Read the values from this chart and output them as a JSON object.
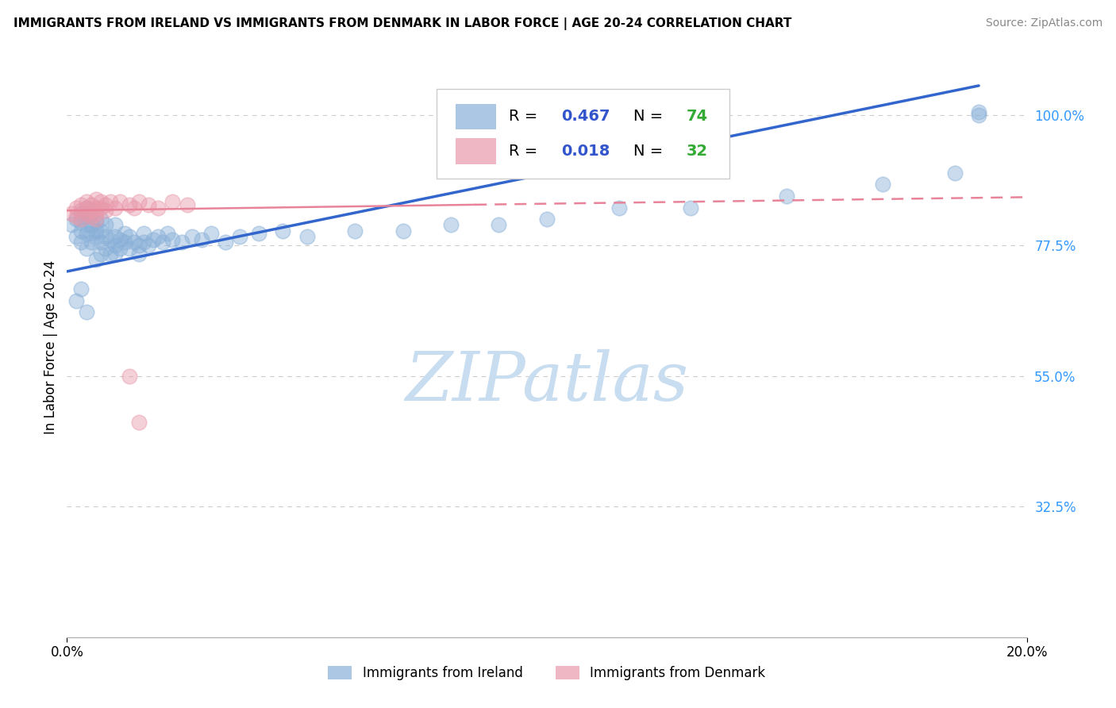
{
  "title": "IMMIGRANTS FROM IRELAND VS IMMIGRANTS FROM DENMARK IN LABOR FORCE | AGE 20-24 CORRELATION CHART",
  "source": "Source: ZipAtlas.com",
  "ylabel": "In Labor Force | Age 20-24",
  "xlim": [
    0.0,
    0.2
  ],
  "ylim": [
    0.1,
    1.1
  ],
  "xtick_labels": [
    "0.0%",
    "20.0%"
  ],
  "ytick_labels": [
    "100.0%",
    "77.5%",
    "55.0%",
    "32.5%"
  ],
  "ytick_positions": [
    1.0,
    0.775,
    0.55,
    0.325
  ],
  "grid_color": "#cccccc",
  "background_color": "#ffffff",
  "ireland_color": "#89b0d8",
  "denmark_color": "#e899aa",
  "ireland_line_color": "#3366cc",
  "denmark_line_color": "#e8849a",
  "ytick_color": "#3399ff",
  "legend_R_color": "#3355cc",
  "legend_N_color": "#33aa33",
  "watermark_text": "ZIPatlas",
  "watermark_color": "#c8ddf0",
  "ireland_R": 0.467,
  "ireland_N": 74,
  "denmark_R": 0.018,
  "denmark_N": 32,
  "ireland_line_x0": 0.0,
  "ireland_line_y0": 0.73,
  "ireland_line_x1": 0.19,
  "ireland_line_y1": 1.05,
  "denmark_line_solid_x0": 0.0,
  "denmark_line_solid_y0": 0.835,
  "denmark_line_solid_x1": 0.085,
  "denmark_line_solid_y1": 0.845,
  "denmark_line_dash_x0": 0.085,
  "denmark_line_dash_y0": 0.845,
  "denmark_line_dash_x1": 0.2,
  "denmark_line_dash_y1": 0.858,
  "ireland_x": [
    0.001,
    0.002,
    0.002,
    0.003,
    0.003,
    0.003,
    0.003,
    0.004,
    0.004,
    0.004,
    0.004,
    0.004,
    0.005,
    0.005,
    0.005,
    0.005,
    0.006,
    0.006,
    0.006,
    0.006,
    0.007,
    0.007,
    0.007,
    0.007,
    0.008,
    0.008,
    0.008,
    0.009,
    0.009,
    0.01,
    0.01,
    0.01,
    0.01,
    0.011,
    0.011,
    0.012,
    0.012,
    0.013,
    0.013,
    0.014,
    0.015,
    0.015,
    0.016,
    0.016,
    0.017,
    0.018,
    0.019,
    0.02,
    0.021,
    0.022,
    0.024,
    0.026,
    0.028,
    0.03,
    0.033,
    0.036,
    0.04,
    0.045,
    0.05,
    0.06,
    0.07,
    0.08,
    0.09,
    0.1,
    0.115,
    0.13,
    0.15,
    0.17,
    0.185,
    0.19,
    0.002,
    0.003,
    0.004,
    0.19
  ],
  "ireland_y": [
    0.81,
    0.82,
    0.79,
    0.815,
    0.8,
    0.83,
    0.78,
    0.795,
    0.81,
    0.825,
    0.84,
    0.77,
    0.795,
    0.81,
    0.78,
    0.83,
    0.79,
    0.8,
    0.815,
    0.75,
    0.8,
    0.82,
    0.78,
    0.76,
    0.79,
    0.81,
    0.77,
    0.76,
    0.785,
    0.775,
    0.79,
    0.81,
    0.76,
    0.77,
    0.785,
    0.78,
    0.795,
    0.77,
    0.79,
    0.78,
    0.775,
    0.76,
    0.78,
    0.795,
    0.775,
    0.785,
    0.79,
    0.78,
    0.795,
    0.785,
    0.78,
    0.79,
    0.785,
    0.795,
    0.78,
    0.79,
    0.795,
    0.8,
    0.79,
    0.8,
    0.8,
    0.81,
    0.81,
    0.82,
    0.84,
    0.84,
    0.86,
    0.88,
    0.9,
    1.0,
    0.68,
    0.7,
    0.66,
    1.005
  ],
  "denmark_x": [
    0.001,
    0.002,
    0.002,
    0.003,
    0.003,
    0.003,
    0.004,
    0.004,
    0.004,
    0.005,
    0.005,
    0.005,
    0.006,
    0.006,
    0.006,
    0.006,
    0.007,
    0.007,
    0.008,
    0.008,
    0.009,
    0.01,
    0.011,
    0.013,
    0.014,
    0.015,
    0.017,
    0.019,
    0.022,
    0.025,
    0.013,
    0.015
  ],
  "denmark_y": [
    0.83,
    0.84,
    0.825,
    0.835,
    0.845,
    0.82,
    0.84,
    0.83,
    0.85,
    0.835,
    0.825,
    0.845,
    0.84,
    0.855,
    0.83,
    0.82,
    0.85,
    0.84,
    0.835,
    0.845,
    0.85,
    0.84,
    0.85,
    0.845,
    0.84,
    0.85,
    0.845,
    0.84,
    0.85,
    0.845,
    0.55,
    0.47
  ]
}
